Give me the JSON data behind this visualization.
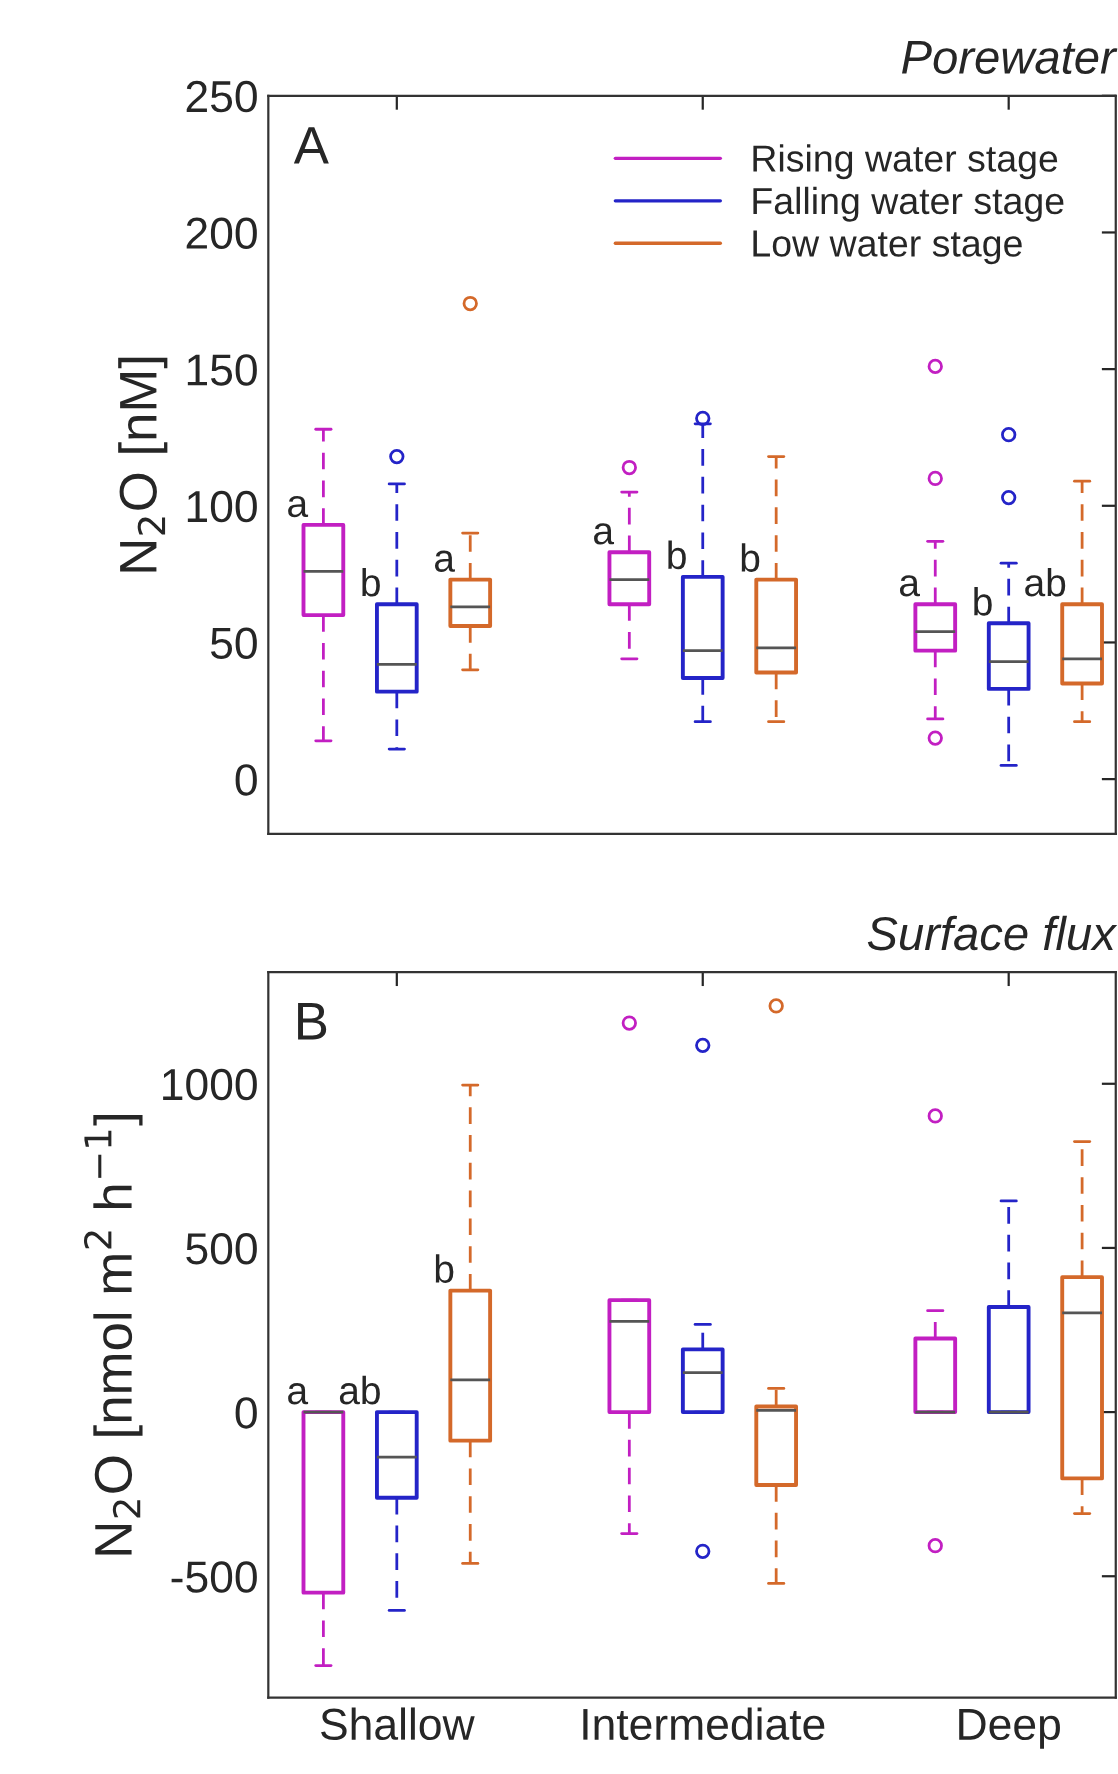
{
  "chart_data": [
    {
      "type": "box",
      "title": "Porewater",
      "ylabel": "N$_{2}$O [nM]",
      "annotations": [
        "A"
      ],
      "ylim": [
        -20,
        250
      ],
      "yticks": [
        0,
        50,
        100,
        150,
        200,
        250
      ],
      "tick_labels": "y",
      "legend": "top right",
      "grid": false,
      "series": [
        {
          "name": "Rising water stage",
          "color": "#c21fc2",
          "value_labels": [
            "a",
            "a",
            "a"
          ],
          "boxes": [
            {
              "low": 14,
              "q1": 60,
              "median": 76,
              "q3": 93,
              "high": 128
            },
            {
              "low": 44,
              "q1": 64,
              "median": 73,
              "q3": 83,
              "high": 105,
              "outliers": [
                114
              ]
            },
            {
              "low": 22,
              "q1": 47,
              "median": 54,
              "q3": 64,
              "high": 87,
              "outliers": [
                151,
                110,
                15
              ]
            }
          ]
        },
        {
          "name": "Falling water stage",
          "color": "#2424c8",
          "value_labels": [
            "b",
            "b",
            "b"
          ],
          "boxes": [
            {
              "low": 11,
              "q1": 32,
              "median": 42,
              "q3": 64,
              "high": 108,
              "outliers": [
                118
              ]
            },
            {
              "low": 21,
              "q1": 37,
              "median": 47,
              "q3": 74,
              "high": 130,
              "outliers": [
                132
              ]
            },
            {
              "low": 5,
              "q1": 33,
              "median": 43,
              "q3": 57,
              "high": 79,
              "outliers": [
                126,
                103
              ]
            }
          ]
        },
        {
          "name": "Low water stage",
          "color": "#d4692a",
          "value_labels": [
            "a",
            "b",
            "ab"
          ],
          "boxes": [
            {
              "low": 40,
              "q1": 56,
              "median": 63,
              "q3": 73,
              "high": 90,
              "outliers": [
                174
              ]
            },
            {
              "low": 21,
              "q1": 39,
              "median": 48,
              "q3": 73,
              "high": 118
            },
            {
              "low": 21,
              "q1": 35,
              "median": 44,
              "q3": 64,
              "high": 109
            }
          ]
        }
      ]
    },
    {
      "type": "box",
      "title": "Surface flux",
      "ylabel": "N$_{2}$O [nmol m$^{2}$ h$^{−1}$]",
      "annotations": [
        "B"
      ],
      "categories": [
        "Shallow",
        "Intermediate",
        "Deep"
      ],
      "ylim": [
        -870,
        1340
      ],
      "yticks": [
        -500,
        0,
        500,
        1000
      ],
      "grid": false,
      "series": [
        {
          "color": "#c21fc2",
          "value_labels": [
            "a",
            null,
            null
          ],
          "boxes": [
            {
              "low": -772,
              "q1": -550,
              "median": 0,
              "q3": 0,
              "high": 0
            },
            {
              "low": -370,
              "q1": 0,
              "median": 276,
              "q3": 341,
              "high": 341,
              "outliers": [
                1185
              ]
            },
            {
              "low": 0,
              "q1": 0,
              "median": 0,
              "q3": 224,
              "high": 309,
              "outliers": [
                902,
                -407
              ]
            }
          ]
        },
        {
          "color": "#2424c8",
          "value_labels": [
            "ab",
            null,
            null
          ],
          "boxes": [
            {
              "low": -604,
              "q1": -261,
              "median": -137,
              "q3": 0,
              "high": 0
            },
            {
              "low": 0,
              "q1": 0,
              "median": 120,
              "q3": 191,
              "high": 267,
              "outliers": [
                1117,
                -424
              ]
            },
            {
              "low": 0,
              "q1": 0,
              "median": 0,
              "q3": 320,
              "high": 643
            }
          ]
        },
        {
          "color": "#d4692a",
          "value_labels": [
            "b",
            null,
            null
          ],
          "boxes": [
            {
              "low": -461,
              "q1": -87,
              "median": 98,
              "q3": 370,
              "high": 996
            },
            {
              "low": -522,
              "q1": -222,
              "median": 5,
              "q3": 17,
              "high": 72,
              "outliers": [
                1237
              ]
            },
            {
              "low": -309,
              "q1": -202,
              "median": 302,
              "q3": 411,
              "high": 824
            }
          ]
        }
      ]
    }
  ]
}
